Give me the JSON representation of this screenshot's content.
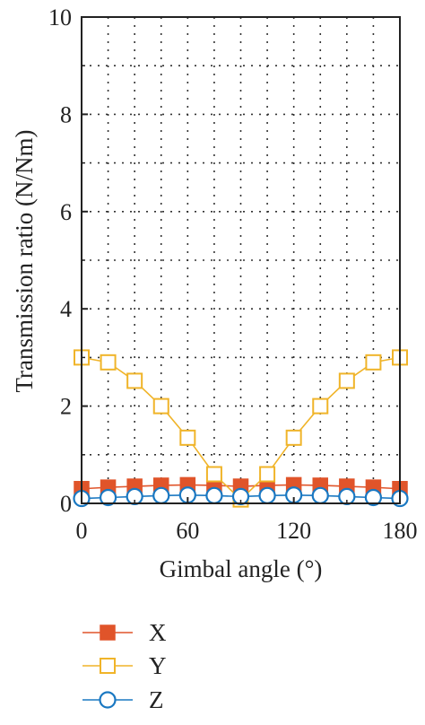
{
  "chart_data": {
    "type": "line",
    "title": "",
    "xlabel": "Gimbal angle (°)",
    "ylabel": "Transmission ratio (N/Nm)",
    "xlim": [
      0,
      180
    ],
    "ylim": [
      0,
      10
    ],
    "xticks": [
      0,
      60,
      120,
      180
    ],
    "yticks": [
      0,
      2,
      4,
      6,
      8,
      10
    ],
    "grid": true,
    "legend_position": "below",
    "x": [
      0,
      15,
      30,
      45,
      60,
      75,
      90,
      105,
      120,
      135,
      150,
      165,
      180
    ],
    "series": [
      {
        "name": "X",
        "marker": "filled-square",
        "color": "#e0542a",
        "values": [
          0.3,
          0.33,
          0.35,
          0.37,
          0.38,
          0.37,
          0.35,
          0.37,
          0.38,
          0.37,
          0.35,
          0.33,
          0.3
        ]
      },
      {
        "name": "Y",
        "marker": "open-square",
        "color": "#f0b429",
        "values": [
          3.0,
          2.9,
          2.52,
          2.0,
          1.35,
          0.6,
          0.08,
          0.6,
          1.35,
          2.0,
          2.52,
          2.9,
          3.0
        ]
      },
      {
        "name": "Z",
        "marker": "open-circle",
        "color": "#1a78c2",
        "values": [
          0.1,
          0.12,
          0.14,
          0.16,
          0.17,
          0.16,
          0.14,
          0.16,
          0.17,
          0.16,
          0.14,
          0.12,
          0.1
        ]
      }
    ]
  }
}
